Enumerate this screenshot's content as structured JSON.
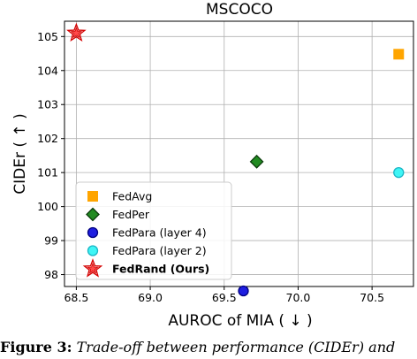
{
  "caption": {
    "label": "Figure 3:",
    "text": "Trade-off between performance (CIDEr) and"
  },
  "chart_data": {
    "type": "scatter",
    "title": "MSCOCO",
    "xlabel": "AUROC of MIA ( ↓ )",
    "ylabel": "CIDEr ( ↑ )",
    "xlim": [
      68.42,
      70.78
    ],
    "ylim": [
      97.65,
      105.45
    ],
    "xticks": [
      "68.5",
      "69.0",
      "69.5",
      "70.0",
      "70.5"
    ],
    "xtick_values": [
      68.5,
      69.0,
      69.5,
      70.0,
      70.5
    ],
    "yticks": [
      "98",
      "99",
      "100",
      "101",
      "102",
      "103",
      "104",
      "105"
    ],
    "ytick_values": [
      98,
      99,
      100,
      101,
      102,
      103,
      104,
      105
    ],
    "grid": true,
    "legend_position": "lower-left",
    "series": [
      {
        "name": "FedAvg",
        "marker": "square",
        "color": "#ffa500",
        "edge": "#ffa500",
        "bold": false,
        "x": [
          70.68
        ],
        "y": [
          104.48
        ]
      },
      {
        "name": "FedPer",
        "marker": "diamond",
        "color": "#228b22",
        "edge": "#0a3a0a",
        "bold": false,
        "x": [
          69.72
        ],
        "y": [
          101.32
        ]
      },
      {
        "name": "FedPara (layer 4)",
        "marker": "circle",
        "color": "#1e1ee0",
        "edge": "#000080",
        "bold": false,
        "x": [
          69.63
        ],
        "y": [
          97.52
        ]
      },
      {
        "name": "FedPara (layer 2)",
        "marker": "circle",
        "color": "#3ff5f5",
        "edge": "#1ab5c5",
        "bold": false,
        "x": [
          70.68
        ],
        "y": [
          101.0
        ]
      },
      {
        "name": "FedRand (Ours)",
        "marker": "star",
        "color": "#ff4a4a",
        "edge": "#d40000",
        "bold": true,
        "x": [
          68.5
        ],
        "y": [
          105.1
        ]
      }
    ]
  }
}
